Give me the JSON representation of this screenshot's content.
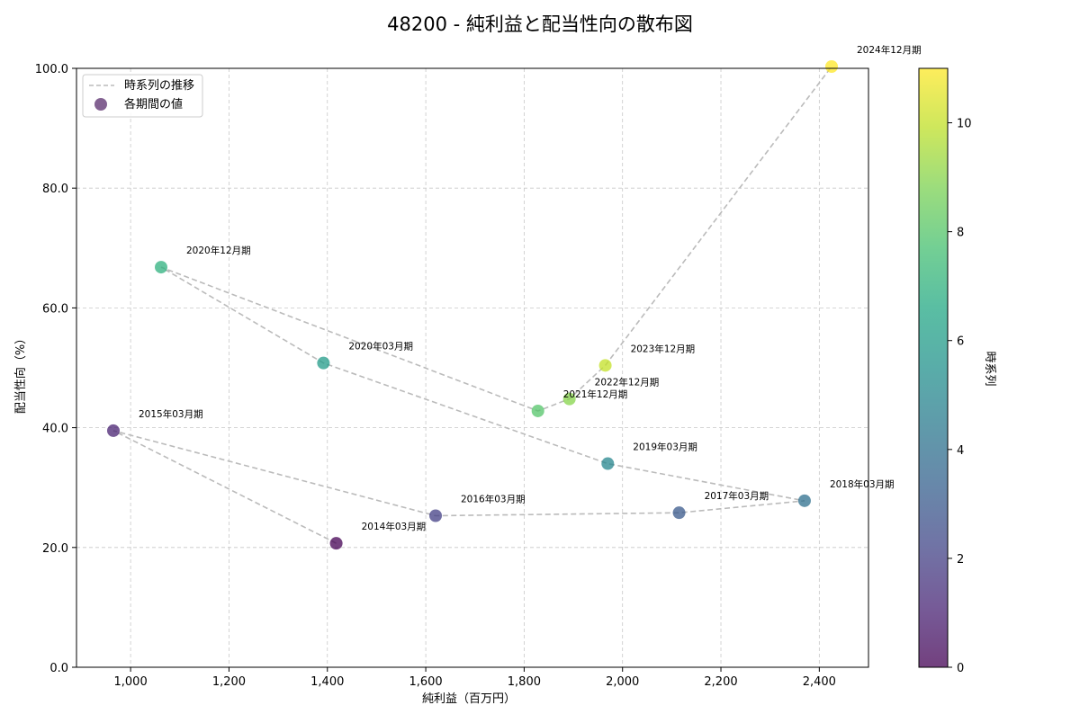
{
  "chart_data": {
    "type": "scatter",
    "title": "48200 - 純利益と配当性向の散布図",
    "xlabel": "純利益（百万円）",
    "ylabel": "配当性向（%）",
    "colorbar_label": "時系列",
    "xlim": [
      890,
      2500
    ],
    "ylim": [
      0,
      100
    ],
    "x_ticks": [
      1000,
      1200,
      1400,
      1600,
      1800,
      2000,
      2200,
      2400
    ],
    "x_tick_labels": [
      "1,000",
      "1,200",
      "1,400",
      "1,600",
      "1,800",
      "2,000",
      "2,200",
      "2,400"
    ],
    "y_ticks": [
      0,
      20,
      40,
      60,
      80,
      100
    ],
    "y_tick_labels": [
      "0.0",
      "20.0",
      "40.0",
      "60.0",
      "80.0",
      "100.0"
    ],
    "colorbar_ticks": [
      0,
      2,
      4,
      6,
      8,
      10
    ],
    "colorbar_tick_labels": [
      "0",
      "2",
      "4",
      "6",
      "8",
      "10"
    ],
    "colorbar_range": [
      0,
      11
    ],
    "grid": true,
    "legend_position": "top-left",
    "legend": {
      "line_label": "時系列の推移",
      "marker_label": "各期間の値"
    },
    "points": [
      {
        "label": "2014年03月期",
        "x": 1418,
        "y": 20.7,
        "t": 0
      },
      {
        "label": "2015年03月期",
        "x": 965,
        "y": 39.5,
        "t": 1
      },
      {
        "label": "2016年03月期",
        "x": 1620,
        "y": 25.3,
        "t": 2
      },
      {
        "label": "2017年03月期",
        "x": 2115,
        "y": 25.8,
        "t": 3
      },
      {
        "label": "2018年03月期",
        "x": 2370,
        "y": 27.8,
        "t": 4
      },
      {
        "label": "2019年03月期",
        "x": 1970,
        "y": 34.0,
        "t": 5
      },
      {
        "label": "2020年03月期",
        "x": 1392,
        "y": 50.8,
        "t": 6
      },
      {
        "label": "2020年12月期",
        "x": 1062,
        "y": 66.8,
        "t": 7
      },
      {
        "label": "2021年12月期",
        "x": 1828,
        "y": 42.8,
        "t": 8
      },
      {
        "label": "2022年12月期",
        "x": 1892,
        "y": 44.8,
        "t": 9
      },
      {
        "label": "2023年12月期",
        "x": 1965,
        "y": 50.4,
        "t": 10
      },
      {
        "label": "2024年12月期",
        "x": 2425,
        "y": 100.3,
        "t": 11
      }
    ],
    "colors": {
      "line": "#bbbbbb",
      "grid": "#c8c8c8",
      "legend_marker": "#5a2d6e"
    }
  }
}
